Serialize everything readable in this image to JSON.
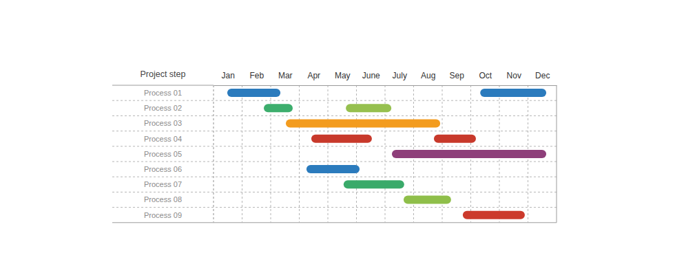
{
  "chart_data": {
    "type": "gantt",
    "row_header": "Project step",
    "categories": [
      "Process 01",
      "Process 02",
      "Process 03",
      "Process 04",
      "Process 05",
      "Process 06",
      "Process 07",
      "Process 08",
      "Process 09"
    ],
    "xlim": [
      0,
      12
    ],
    "xticks": [
      {
        "value": 0,
        "label": "Jan"
      },
      {
        "value": 1,
        "label": "Feb"
      },
      {
        "value": 2,
        "label": "Mar"
      },
      {
        "value": 3,
        "label": "Apr"
      },
      {
        "value": 4,
        "label": "May"
      },
      {
        "value": 5,
        "label": "June"
      },
      {
        "value": 6,
        "label": "July"
      },
      {
        "value": 7,
        "label": "Aug"
      },
      {
        "value": 8,
        "label": "Sep"
      },
      {
        "value": 9,
        "label": "Oct"
      },
      {
        "value": 10,
        "label": "Nov"
      },
      {
        "value": 11,
        "label": "Dec"
      }
    ],
    "grid": true,
    "rows": [
      {
        "spans": [
          {
            "start": 0.48,
            "end": 2.34,
            "color": "#2b7bbd"
          },
          {
            "start": 9.33,
            "end": 11.64,
            "color": "#2b7bbd"
          }
        ]
      },
      {
        "spans": [
          {
            "start": 1.76,
            "end": 2.77,
            "color": "#3dae6d"
          },
          {
            "start": 4.63,
            "end": 6.22,
            "color": "#96c04f"
          }
        ]
      },
      {
        "spans": [
          {
            "start": 2.53,
            "end": 7.93,
            "color": "#f39c1f"
          }
        ]
      },
      {
        "spans": [
          {
            "start": 3.42,
            "end": 5.54,
            "color": "#c8392b"
          },
          {
            "start": 7.71,
            "end": 9.18,
            "color": "#c8392b"
          }
        ]
      },
      {
        "spans": [
          {
            "start": 6.24,
            "end": 11.64,
            "color": "#8e3f7a"
          }
        ]
      },
      {
        "spans": [
          {
            "start": 3.25,
            "end": 5.11,
            "color": "#2b7bbd"
          }
        ]
      },
      {
        "spans": [
          {
            "start": 4.55,
            "end": 6.67,
            "color": "#3aaa6a"
          }
        ]
      },
      {
        "spans": [
          {
            "start": 6.65,
            "end": 8.31,
            "color": "#8fbf4a"
          }
        ]
      },
      {
        "spans": [
          {
            "start": 8.72,
            "end": 10.89,
            "color": "#cc3a2c"
          }
        ]
      }
    ]
  }
}
